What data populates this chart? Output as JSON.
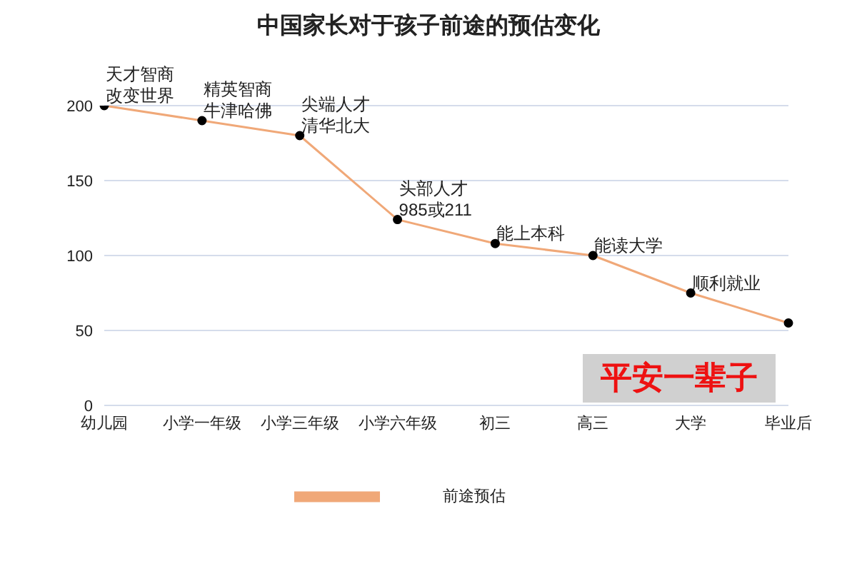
{
  "chart_data": {
    "type": "line",
    "title": "中国家长对于孩子前途的预估变化",
    "categories": [
      "幼儿园",
      "小学一年级",
      "小学三年级",
      "小学六年级",
      "初三",
      "高三",
      "大学",
      "毕业后"
    ],
    "series": [
      {
        "name": "前途预估",
        "color": "#f0a878",
        "values": [
          200,
          190,
          180,
          124,
          108,
          100,
          75,
          55
        ]
      }
    ],
    "ylim": [
      0,
      200
    ],
    "yticks": [
      0,
      50,
      100,
      150,
      200
    ],
    "grid": "y",
    "legend": "bottom",
    "marker": "circle",
    "annotations": [
      {
        "text": "天才智商改变世界",
        "x": "幼儿园",
        "y": 200
      },
      {
        "text": "精英智商牛津哈佛",
        "x": "小学一年级",
        "y": 190
      },
      {
        "text": "尖端人才清华北大",
        "x": "小学三年级",
        "y": 180
      },
      {
        "text": "头部人才985或211",
        "x": "小学六年级",
        "y": 124
      },
      {
        "text": "能上本科",
        "x": "初三",
        "y": 108
      },
      {
        "text": "能读大学",
        "x": "高三",
        "y": 100
      },
      {
        "text": "顺利就业",
        "x": "大学",
        "y": 75
      },
      "平安一辈子"
    ]
  }
}
